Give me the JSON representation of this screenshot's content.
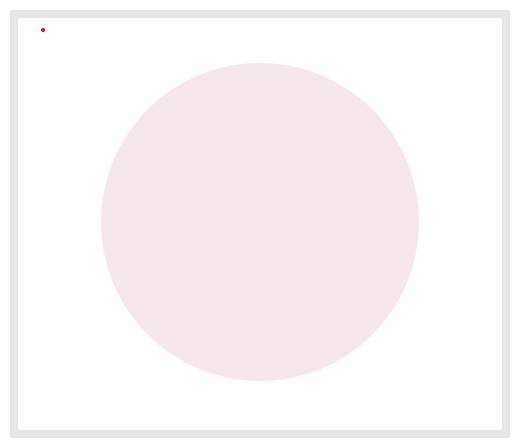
{
  "canvas": {
    "border_color": "#e6e6e6",
    "background_color": "#ffffff",
    "circle": {
      "shape": "circle",
      "fill_color": "#f7e6ea"
    },
    "marker": {
      "shape": "dot",
      "fill_color": "#d40f2a"
    }
  }
}
